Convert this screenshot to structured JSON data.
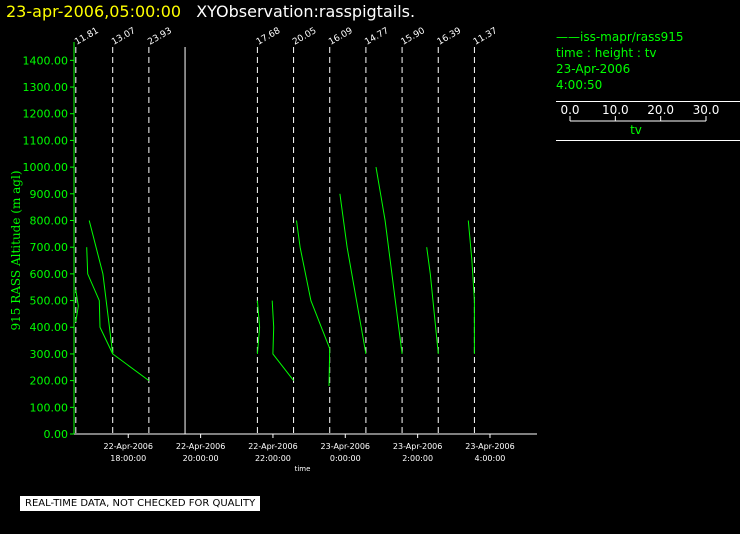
{
  "header": {
    "time": "23-apr-2006,05:00:00",
    "title": "XYObservation:rasspigtails."
  },
  "legend": {
    "series_label": "iss-mapr/rass915",
    "line1": "time : height : tv",
    "line2": "23-Apr-2006",
    "line3": "4:00:50",
    "scale_ticks": [
      "0.0",
      "10.0",
      "20.0",
      "30.0"
    ],
    "scale_label": "tv"
  },
  "footer": {
    "notice": "REAL-TIME DATA, NOT CHECKED FOR QUALITY"
  },
  "colors": {
    "background": "#000000",
    "series": "#00ff00",
    "axis": "#ffffff",
    "header_time": "#ffff00"
  },
  "chart_data": {
    "type": "line",
    "ylabel": "915 RASS Altitude (m agl)",
    "xlabel": "time",
    "xlim_hours": [
      16.5,
      29.3
    ],
    "ylim": [
      0,
      1450
    ],
    "yticks": [
      "0.00",
      "100.00",
      "200.00",
      "300.00",
      "400.00",
      "500.00",
      "600.00",
      "700.00",
      "800.00",
      "900.00",
      "1000.00",
      "1100.00",
      "1200.00",
      "1300.00",
      "1400.00"
    ],
    "xticks": [
      {
        "hour": 18,
        "date": "22-Apr-2006",
        "time": "18:00:00"
      },
      {
        "hour": 20,
        "date": "22-Apr-2006",
        "time": "20:00:00"
      },
      {
        "hour": 22,
        "date": "22-Apr-2006",
        "time": "22:00:00"
      },
      {
        "hour": 24,
        "date": "23-Apr-2006",
        "time": "0:00:00"
      },
      {
        "hour": 26,
        "date": "23-Apr-2006",
        "time": "2:00:00"
      },
      {
        "hour": 28,
        "date": "23-Apr-2006",
        "time": "4:00:00"
      }
    ],
    "markers": [
      {
        "hour": 16.55,
        "label": "11.81",
        "style": "dashed"
      },
      {
        "hour": 17.57,
        "label": "13.07",
        "style": "dashed"
      },
      {
        "hour": 18.57,
        "label": "23.93",
        "style": "dashed"
      },
      {
        "hour": 19.57,
        "label": "",
        "style": "solid"
      },
      {
        "hour": 21.57,
        "label": "17.68",
        "style": "dashed"
      },
      {
        "hour": 22.57,
        "label": "20.05",
        "style": "dashed"
      },
      {
        "hour": 23.57,
        "label": "16.09",
        "style": "dashed"
      },
      {
        "hour": 24.57,
        "label": "14.77",
        "style": "dashed"
      },
      {
        "hour": 25.57,
        "label": "15.90",
        "style": "dashed"
      },
      {
        "hour": 26.57,
        "label": "16.39",
        "style": "dashed"
      },
      {
        "hour": 27.57,
        "label": "11.37",
        "style": "dashed"
      }
    ],
    "series": [
      {
        "points": [
          [
            16.55,
            540
          ],
          [
            16.62,
            480
          ],
          [
            16.55,
            420
          ]
        ]
      },
      {
        "points": [
          [
            16.85,
            700
          ],
          [
            16.88,
            600
          ],
          [
            17.2,
            500
          ],
          [
            17.22,
            400
          ],
          [
            17.57,
            300
          ]
        ]
      },
      {
        "points": [
          [
            16.92,
            800
          ],
          [
            17.3,
            600
          ],
          [
            17.57,
            300
          ],
          [
            18.57,
            200
          ]
        ]
      },
      {
        "points": [
          [
            21.57,
            500
          ],
          [
            21.63,
            400
          ],
          [
            21.57,
            300
          ]
        ]
      },
      {
        "points": [
          [
            21.98,
            500
          ],
          [
            22.02,
            400
          ],
          [
            22.0,
            300
          ],
          [
            22.57,
            200
          ]
        ]
      },
      {
        "points": [
          [
            22.65,
            800
          ],
          [
            22.75,
            700
          ],
          [
            23.05,
            500
          ],
          [
            23.57,
            320
          ],
          [
            23.55,
            180
          ]
        ]
      },
      {
        "points": [
          [
            23.85,
            900
          ],
          [
            24.05,
            700
          ],
          [
            24.57,
            300
          ]
        ]
      },
      {
        "points": [
          [
            24.85,
            1000
          ],
          [
            25.1,
            800
          ],
          [
            25.57,
            300
          ]
        ]
      },
      {
        "points": [
          [
            26.25,
            700
          ],
          [
            26.35,
            600
          ],
          [
            26.57,
            300
          ]
        ]
      },
      {
        "points": [
          [
            27.4,
            800
          ],
          [
            27.5,
            650
          ],
          [
            27.57,
            500
          ],
          [
            27.57,
            300
          ]
        ]
      }
    ]
  }
}
